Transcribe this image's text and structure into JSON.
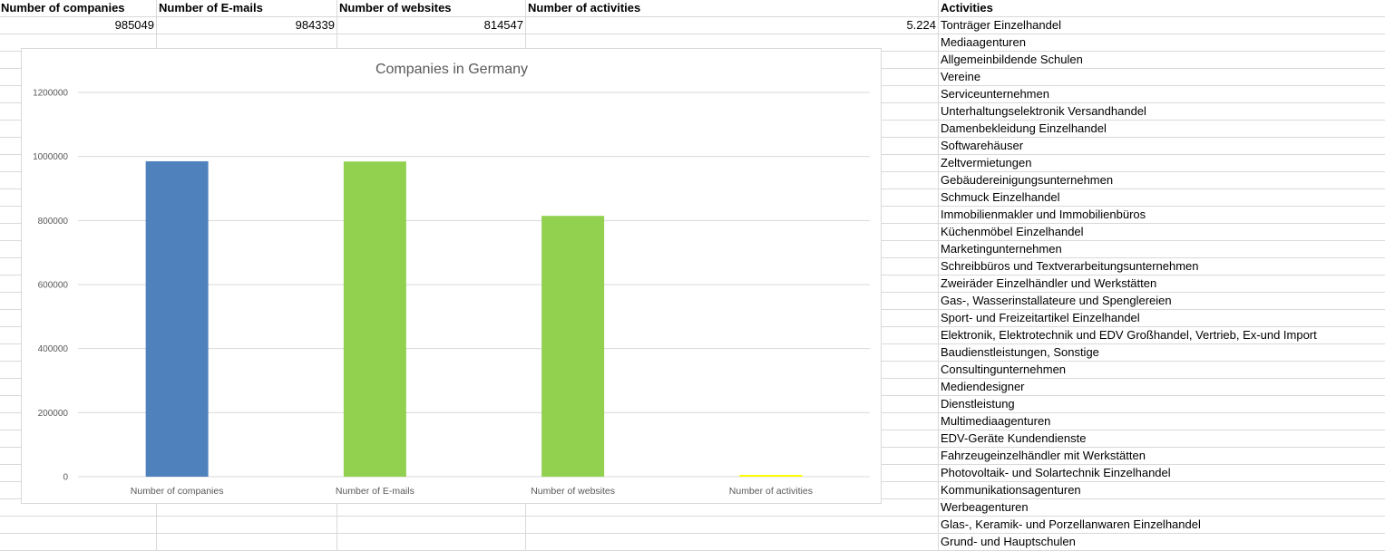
{
  "sheet": {
    "headers": {
      "companies": "Number of companies",
      "emails": "Number of E-mails",
      "websites": "Number of websites",
      "activities_count": "Number of activities",
      "activities": "Activities"
    },
    "values": {
      "companies": "985049",
      "emails": "984339",
      "websites": "814547",
      "activities_count": "5.224"
    },
    "activities": [
      "Tonträger Einzelhandel",
      "Mediaagenturen",
      "Allgemeinbildende Schulen",
      "Vereine",
      "Serviceunternehmen",
      "Unterhaltungselektronik Versandhandel",
      "Damenbekleidung Einzelhandel",
      "Softwarehäuser",
      "Zeltvermietungen",
      "Gebäudereinigungsunternehmen",
      "Schmuck Einzelhandel",
      "Immobilienmakler und Immobilienbüros",
      "Küchenmöbel Einzelhandel",
      "Marketingunternehmen",
      "Schreibbüros und Textverarbeitungsunternehmen",
      "Zweiräder Einzelhändler und Werkstätten",
      "Gas-, Wasserinstallateure und Spenglereien",
      "Sport- und Freizeitartikel Einzelhandel",
      "Elektronik, Elektrotechnik und EDV Großhandel, Vertrieb, Ex-und Import",
      "Baudienstleistungen, Sonstige",
      "Consultingunternehmen",
      "Mediendesigner",
      "Dienstleistung",
      "Multimediaagenturen",
      "EDV-Geräte Kundendienste",
      "Fahrzeugeinzelhändler mit Werkstätten",
      "Photovoltaik- und Solartechnik Einzelhandel",
      "Kommunikationsagenturen",
      "Werbeagenturen",
      "Glas-, Keramik- und Porzellanwaren Einzelhandel",
      "Grund- und Hauptschulen"
    ]
  },
  "chart_data": {
    "type": "bar",
    "title": "Companies in Germany",
    "categories": [
      "Number of companies",
      "Number of E-mails",
      "Number of websites",
      "Number of activities"
    ],
    "values": [
      985049,
      984339,
      814547,
      5224
    ],
    "colors": [
      "#4f81bd",
      "#92d050",
      "#92d050",
      "#ffff00"
    ],
    "ylim": [
      0,
      1200000
    ],
    "yticks": [
      0,
      200000,
      400000,
      600000,
      800000,
      1000000,
      1200000
    ],
    "ytick_labels": [
      "0",
      "200000",
      "400000",
      "600000",
      "800000",
      "1000000",
      "1200000"
    ],
    "grid": true,
    "xlabel": "",
    "ylabel": ""
  }
}
